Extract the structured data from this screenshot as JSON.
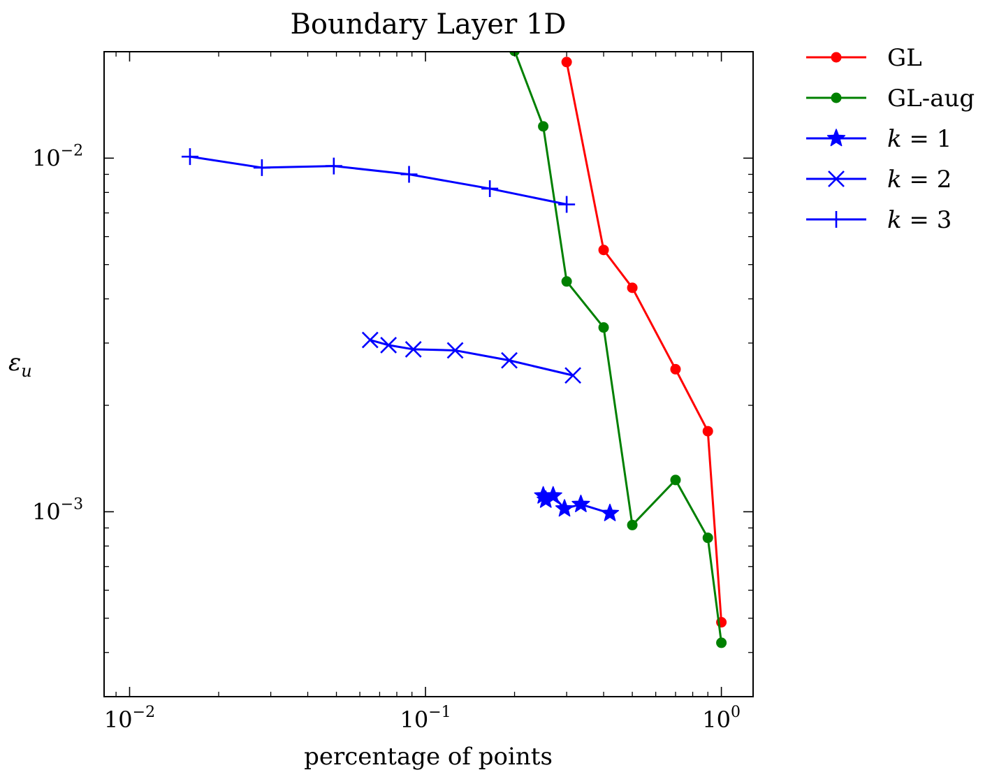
{
  "chart_data": {
    "type": "line",
    "title": "Boundary Layer 1D",
    "xlabel": "percentage of points",
    "ylabel": "ε_u",
    "xscale": "log",
    "yscale": "log",
    "xlim": [
      0.0082,
      1.28
    ],
    "ylim": [
      0.0003,
      0.02
    ],
    "x_ticks": [
      {
        "value": 0.01,
        "label": "10^{-2}",
        "base": "10",
        "exp": "−2"
      },
      {
        "value": 0.1,
        "label": "10^{-1}",
        "base": "10",
        "exp": "−1"
      },
      {
        "value": 1,
        "label": "10^{0}",
        "base": "10",
        "exp": "0"
      }
    ],
    "y_ticks": [
      {
        "value": 0.001,
        "label": "10^{-3}",
        "base": "10",
        "exp": "−3"
      },
      {
        "value": 0.01,
        "label": "10^{-2}",
        "base": "10",
        "exp": "−2"
      }
    ],
    "grid": false,
    "legend_position": "outside-right-top",
    "series": [
      {
        "name": "GL",
        "color": "#ff0000",
        "marker": "circle",
        "x": [
          0.3,
          0.4,
          0.5,
          0.7,
          0.9,
          1.0
        ],
        "y": [
          0.0187,
          0.0055,
          0.0043,
          0.00253,
          0.00169,
          0.000487
        ]
      },
      {
        "name": "GL-aug",
        "color": "#008000",
        "marker": "circle",
        "x": [
          0.2,
          0.25,
          0.3,
          0.4,
          0.5,
          0.7,
          0.9,
          1.0
        ],
        "y": [
          0.0201,
          0.0123,
          0.00448,
          0.00332,
          0.000917,
          0.00123,
          0.000844,
          0.000426
        ]
      },
      {
        "name": "k = 1",
        "legend": {
          "var": "k",
          "op": "=",
          "num": "1"
        },
        "color": "#0000ff",
        "marker": "star",
        "x": [
          0.25,
          0.255,
          0.27,
          0.295,
          0.335,
          0.42
        ],
        "y": [
          0.00111,
          0.00108,
          0.00111,
          0.00102,
          0.00105,
          0.00099
        ]
      },
      {
        "name": "k = 2",
        "legend": {
          "var": "k",
          "op": "=",
          "num": "2"
        },
        "color": "#0000ff",
        "marker": "x",
        "x": [
          0.065,
          0.075,
          0.091,
          0.126,
          0.192,
          0.315
        ],
        "y": [
          0.00306,
          0.00296,
          0.00288,
          0.00286,
          0.00268,
          0.00243
        ]
      },
      {
        "name": "k = 3",
        "legend": {
          "var": "k",
          "op": "=",
          "num": "3"
        },
        "color": "#0000ff",
        "marker": "plus",
        "x": [
          0.016,
          0.028,
          0.049,
          0.088,
          0.165,
          0.3
        ],
        "y": [
          0.0101,
          0.0094,
          0.0095,
          0.009,
          0.0082,
          0.0074
        ]
      }
    ]
  }
}
